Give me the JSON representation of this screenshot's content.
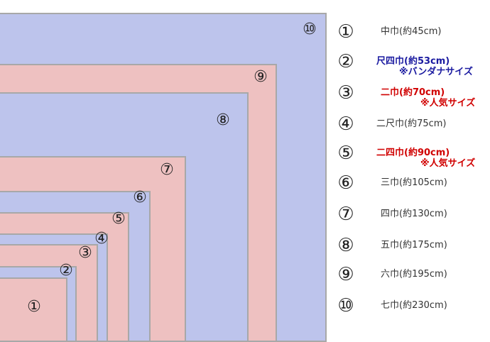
{
  "colors": {
    "blue_fill": "#bdc4ec",
    "pink_fill": "#eec1c1",
    "border": "#a8a8a8",
    "text": "#333333",
    "navy": "#1a1aa0",
    "red": "#d00000"
  },
  "squares": [
    {
      "num": "①",
      "fill": "pink"
    },
    {
      "num": "②",
      "fill": "blue"
    },
    {
      "num": "③",
      "fill": "pink"
    },
    {
      "num": "④",
      "fill": "blue"
    },
    {
      "num": "⑤",
      "fill": "pink"
    },
    {
      "num": "⑥",
      "fill": "blue"
    },
    {
      "num": "⑦",
      "fill": "pink"
    },
    {
      "num": "⑧",
      "fill": "blue"
    },
    {
      "num": "⑨",
      "fill": "pink"
    },
    {
      "num": "⑩",
      "fill": "blue"
    }
  ],
  "legend": [
    {
      "num": "①",
      "label": "中巾(約45cm)",
      "note": "",
      "color": "#333333"
    },
    {
      "num": "②",
      "label": "尺四巾(約53cm)",
      "note": "※バンダナサイズ",
      "color": "#1a1aa0"
    },
    {
      "num": "③",
      "label": "二巾(約70cm)",
      "note": "※人気サイズ",
      "color": "#d00000"
    },
    {
      "num": "④",
      "label": "二尺巾(約75cm)",
      "note": "",
      "color": "#333333"
    },
    {
      "num": "⑤",
      "label": "二四巾(約90cm)",
      "note": "※人気サイズ",
      "color": "#d00000"
    },
    {
      "num": "⑥",
      "label": "三巾(約105cm)",
      "note": "",
      "color": "#333333"
    },
    {
      "num": "⑦",
      "label": "四巾(約130cm)",
      "note": "",
      "color": "#333333"
    },
    {
      "num": "⑧",
      "label": "五巾(約175cm)",
      "note": "",
      "color": "#333333"
    },
    {
      "num": "⑨",
      "label": "六巾(約195cm)",
      "note": "",
      "color": "#333333"
    },
    {
      "num": "⑩",
      "label": "七巾(約230cm)",
      "note": "",
      "color": "#333333"
    }
  ]
}
